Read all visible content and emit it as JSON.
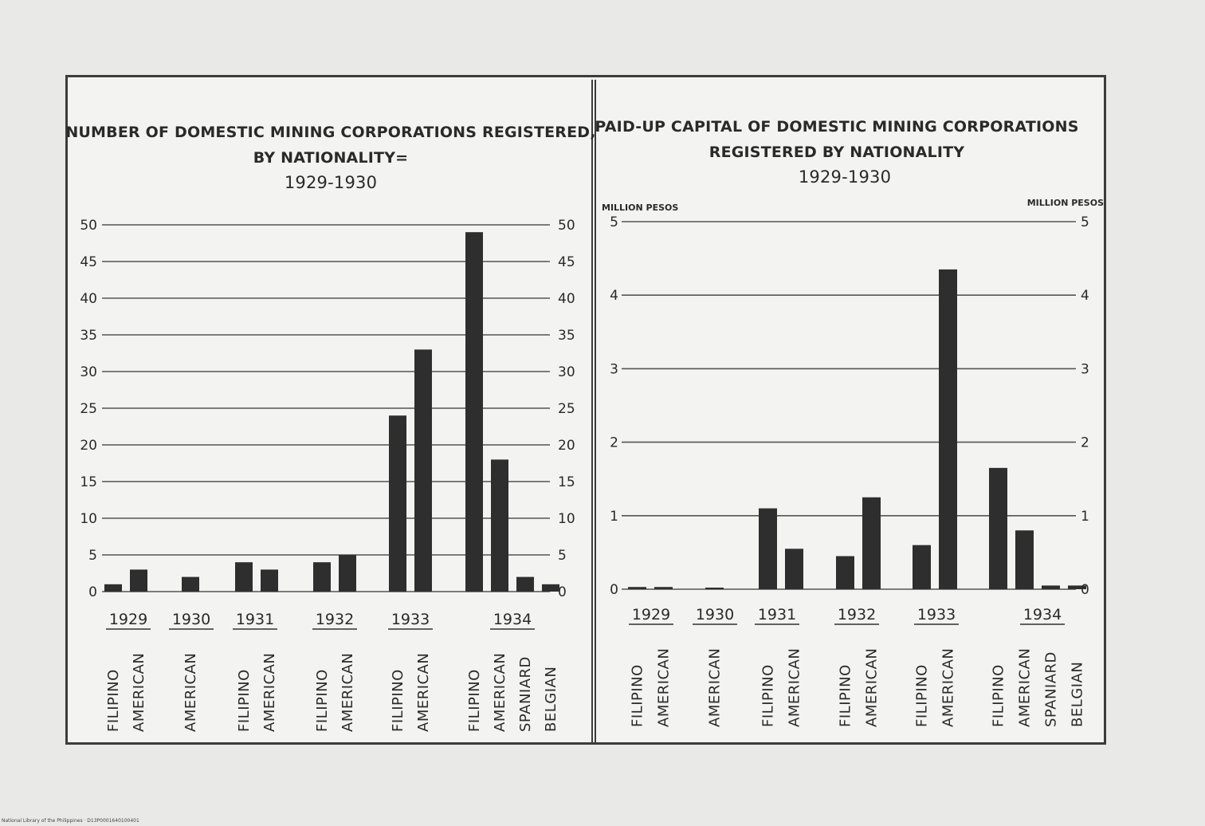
{
  "charts": {
    "left": {
      "title_lines": [
        "NUMBER OF DOMESTIC MINING CORPORATIONS REGISTERED,",
        "BY NATIONALITY=",
        "1929-1930"
      ]
    },
    "right": {
      "title_lines": [
        "PAID-UP CAPITAL OF DOMESTIC MINING CORPORATIONS",
        "REGISTERED BY NATIONALITY",
        "1929-1930"
      ],
      "unit_left": "MILLION PESOS",
      "unit_right": "MILLION PESOS"
    }
  },
  "chart_data": [
    {
      "type": "bar",
      "title": "NUMBER OF DOMESTIC MINING CORPORATIONS REGISTERED, BY NATIONALITY= 1929-1930",
      "ylim": [
        0,
        50
      ],
      "yticks": [
        "0",
        "5",
        "10",
        "15",
        "20",
        "25",
        "30",
        "35",
        "40",
        "45",
        "50"
      ],
      "grid": true,
      "groups": [
        {
          "year": "1929",
          "categories": [
            "FILIPINO",
            "AMERICAN"
          ],
          "values": [
            1,
            3
          ]
        },
        {
          "year": "1930",
          "categories": [
            "AMERICAN"
          ],
          "values": [
            2
          ]
        },
        {
          "year": "1931",
          "categories": [
            "FILIPINO",
            "AMERICAN"
          ],
          "values": [
            4,
            3
          ]
        },
        {
          "year": "1932",
          "categories": [
            "FILIPINO",
            "AMERICAN"
          ],
          "values": [
            4,
            5
          ]
        },
        {
          "year": "1933",
          "categories": [
            "FILIPINO",
            "AMERICAN"
          ],
          "values": [
            24,
            33
          ]
        },
        {
          "year": "1934",
          "categories": [
            "FILIPINO",
            "AMERICAN",
            "SPANIARD",
            "BELGIAN"
          ],
          "values": [
            49,
            18,
            2,
            1
          ]
        }
      ]
    },
    {
      "type": "bar",
      "title": "PAID-UP CAPITAL OF DOMESTIC MINING CORPORATIONS REGISTERED BY NATIONALITY 1929-1930",
      "ylabel": "MILLION PESOS",
      "ylim": [
        0,
        5
      ],
      "yticks": [
        "0",
        "1",
        "2",
        "3",
        "4",
        "5"
      ],
      "grid": true,
      "groups": [
        {
          "year": "1929",
          "categories": [
            "FILIPINO",
            "AMERICAN"
          ],
          "values": [
            0.03,
            0.03
          ]
        },
        {
          "year": "1930",
          "categories": [
            "AMERICAN"
          ],
          "values": [
            0.02
          ]
        },
        {
          "year": "1931",
          "categories": [
            "FILIPINO",
            "AMERICAN"
          ],
          "values": [
            1.1,
            0.55
          ]
        },
        {
          "year": "1932",
          "categories": [
            "FILIPINO",
            "AMERICAN"
          ],
          "values": [
            0.45,
            1.25
          ]
        },
        {
          "year": "1933",
          "categories": [
            "FILIPINO",
            "AMERICAN"
          ],
          "values": [
            0.6,
            4.35
          ]
        },
        {
          "year": "1934",
          "categories": [
            "FILIPINO",
            "AMERICAN",
            "SPANIARD",
            "BELGIAN"
          ],
          "values": [
            1.65,
            0.8,
            0.05,
            0.05
          ]
        }
      ]
    }
  ],
  "footer": "National Library of the Philippines · D13P0001640100401"
}
